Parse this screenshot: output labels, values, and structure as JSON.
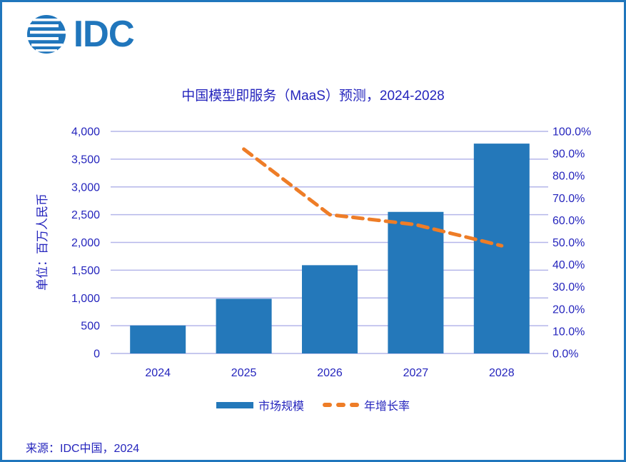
{
  "logo": {
    "text": "IDC",
    "color": "#2076BC"
  },
  "title": "中国模型即服务（MaaS）预测，2024-2028",
  "source": "来源：IDC中国，2024",
  "colors": {
    "brand": "#2076BC",
    "bar": "#2478BA",
    "line": "#EE7D27",
    "grid": "#B4B6E9",
    "text": "#2525BD",
    "background": "#FFFFFF"
  },
  "chart_data": {
    "type": "bar",
    "subtype": "combo-bar-line-dual-axis",
    "title": "中国模型即服务（MaaS）预测，2024-2028",
    "categories": [
      "2024",
      "2025",
      "2026",
      "2027",
      "2028"
    ],
    "series": [
      {
        "name": "市场规模",
        "type": "bar",
        "axis": "left",
        "color": "#2478BA",
        "values": [
          505,
          985,
          1590,
          2550,
          3780
        ]
      },
      {
        "name": "年增长率",
        "type": "line",
        "axis": "right",
        "color": "#EE7D27",
        "style": "dashed",
        "unit": "%",
        "values": [
          null,
          92,
          62.5,
          58,
          48.5
        ]
      }
    ],
    "left_axis": {
      "title": "单位：百万人民币",
      "min": 0,
      "max": 4000,
      "step": 500,
      "tick_labels": [
        "4,000",
        "3,500",
        "3,000",
        "2,500",
        "2,000",
        "1,500",
        "1,000",
        "500",
        "0"
      ]
    },
    "right_axis": {
      "min": 0,
      "max": 100,
      "step": 10,
      "tick_labels": [
        "100.0%",
        "90.0%",
        "80.0%",
        "70.0%",
        "60.0%",
        "50.0%",
        "40.0%",
        "30.0%",
        "20.0%",
        "10.0%",
        "0.0%"
      ]
    },
    "grid": true,
    "legend_position": "bottom"
  }
}
